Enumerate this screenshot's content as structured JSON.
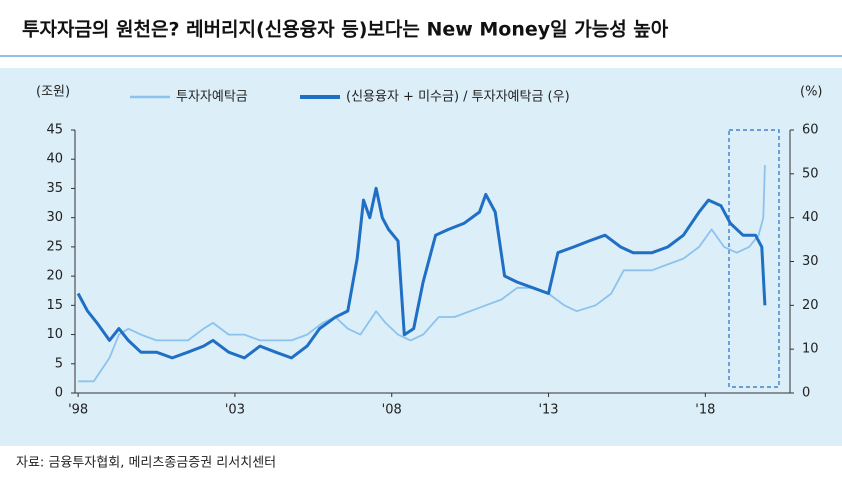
{
  "chart_data": {
    "type": "line",
    "title": "투자자금의 원천은? 레버리지(신용융자 등)보다는 New Money일 가능성 높아",
    "source": "자료: 금융투자협회, 메리츠종금증권 리서치센터",
    "ylabel": "(조원)",
    "y2label": "(%)",
    "xlim": [
      1997.9,
      2020.7
    ],
    "xticks": [
      {
        "value": 1998,
        "label": "'98"
      },
      {
        "value": 2003,
        "label": "'03"
      },
      {
        "value": 2008,
        "label": "'08"
      },
      {
        "value": 2013,
        "label": "'13"
      },
      {
        "value": 2018,
        "label": "'18"
      }
    ],
    "ylim": [
      0,
      45
    ],
    "yticks": [
      0,
      5,
      10,
      15,
      20,
      25,
      30,
      35,
      40,
      45
    ],
    "y2lim": [
      0,
      60
    ],
    "y2ticks": [
      0,
      10,
      20,
      30,
      40,
      50,
      60
    ],
    "series": [
      {
        "name": "투자자예탁금",
        "color": "#8cc3ee",
        "axis": "y",
        "x": [
          1998.0,
          1998.5,
          1999.0,
          1999.3,
          1999.6,
          2000.0,
          2000.5,
          2001.0,
          2001.5,
          2002.0,
          2002.3,
          2002.8,
          2003.3,
          2003.8,
          2004.3,
          2004.8,
          2005.3,
          2005.8,
          2006.2,
          2006.6,
          2007.0,
          2007.5,
          2007.8,
          2008.2,
          2008.6,
          2009.0,
          2009.5,
          2010.0,
          2010.5,
          2011.0,
          2011.5,
          2012.0,
          2012.5,
          2013.0,
          2013.5,
          2013.9,
          2014.5,
          2015.0,
          2015.4,
          2015.8,
          2016.3,
          2016.8,
          2017.3,
          2017.8,
          2018.2,
          2018.6,
          2019.0,
          2019.4,
          2019.7,
          2019.85,
          2019.9
        ],
        "values": [
          2,
          2,
          6,
          10,
          11,
          10,
          9,
          9,
          9,
          11,
          12,
          10,
          10,
          9,
          9,
          9,
          10,
          12,
          13,
          11,
          10,
          14,
          12,
          10,
          9,
          10,
          13,
          13,
          14,
          15,
          16,
          18,
          18,
          17,
          15,
          14,
          15,
          17,
          21,
          21,
          21,
          22,
          23,
          25,
          28,
          25,
          24,
          25,
          27,
          30,
          39
        ]
      },
      {
        "name": "(신용융자 + 미수금) / 투자자예탁금 (우)",
        "color": "#1f6fc5",
        "axis": "y2",
        "x": [
          1998.0,
          1998.3,
          1998.6,
          1999.0,
          1999.3,
          1999.6,
          2000.0,
          2000.5,
          2001.0,
          2001.5,
          2002.0,
          2002.3,
          2002.8,
          2003.3,
          2003.8,
          2004.3,
          2004.8,
          2005.3,
          2005.7,
          2006.2,
          2006.6,
          2006.9,
          2007.1,
          2007.3,
          2007.5,
          2007.7,
          2007.9,
          2008.2,
          2008.4,
          2008.7,
          2009.0,
          2009.4,
          2009.8,
          2010.3,
          2010.8,
          2011.0,
          2011.3,
          2011.6,
          2012.0,
          2012.5,
          2013.0,
          2013.3,
          2013.8,
          2014.3,
          2014.8,
          2015.3,
          2015.7,
          2016.3,
          2016.8,
          2017.3,
          2017.8,
          2018.1,
          2018.5,
          2018.8,
          2019.2,
          2019.6,
          2019.8,
          2019.9
        ],
        "values": [
          22.7,
          18.7,
          16,
          12,
          14.7,
          12,
          9.3,
          9.3,
          8,
          9.3,
          10.7,
          12,
          9.3,
          8,
          10.7,
          9.3,
          8,
          10.7,
          14.7,
          17.3,
          18.7,
          30.7,
          44,
          40,
          46.7,
          40,
          37.3,
          34.7,
          13.3,
          14.7,
          25.3,
          36,
          37.3,
          38.7,
          41.3,
          45.3,
          41.3,
          26.7,
          25.3,
          24,
          22.7,
          32,
          33.3,
          34.7,
          36,
          33.3,
          32,
          32,
          33.3,
          36,
          41.3,
          44,
          42.7,
          38.7,
          36,
          36,
          33.3,
          20
        ]
      }
    ]
  }
}
